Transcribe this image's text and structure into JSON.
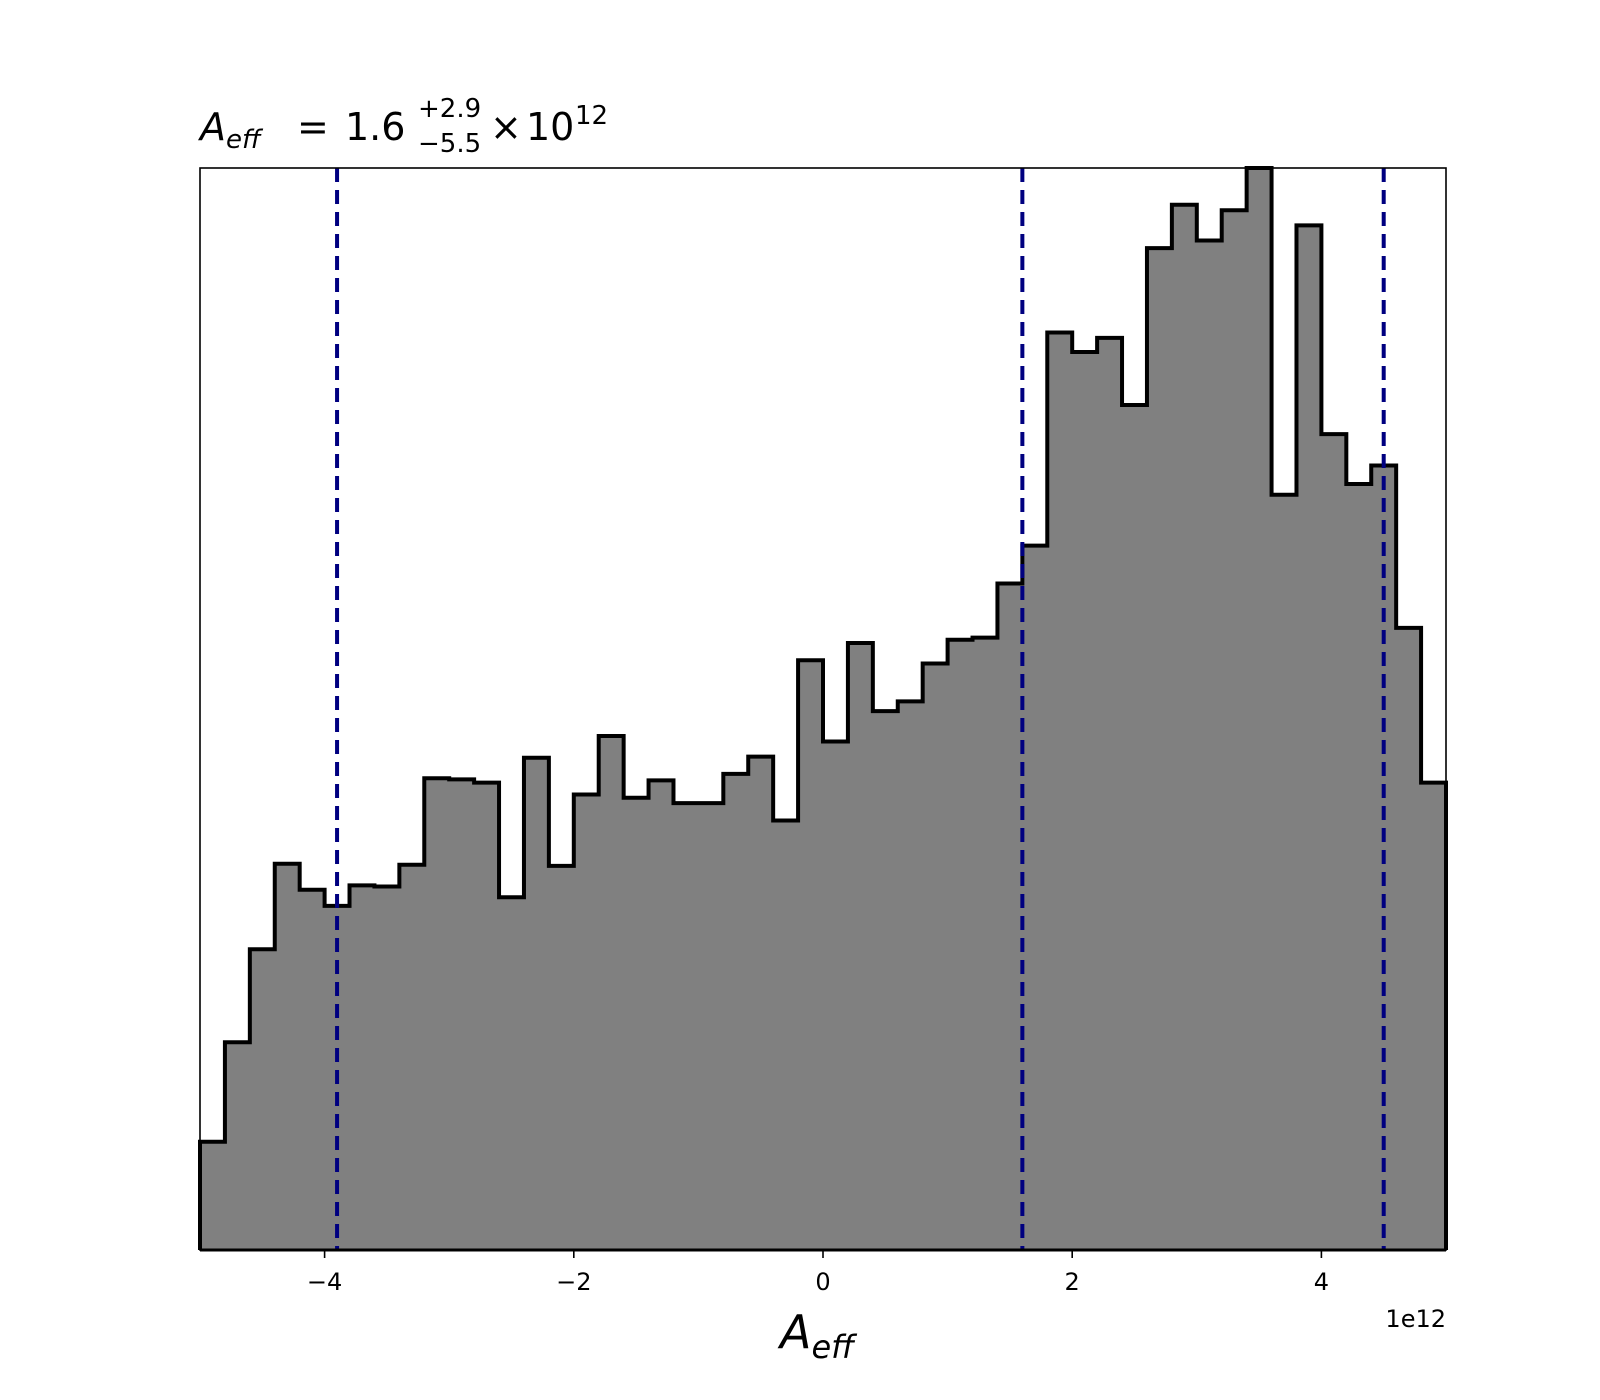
{
  "chart_data": {
    "type": "histogram",
    "title": {
      "symbol": "A",
      "symbol_subscript": "eff",
      "equals": "=",
      "median": "1.6",
      "upper": "+2.9",
      "lower": "−5.5",
      "times": "×",
      "base": "10",
      "exponent": "12"
    },
    "xlabel": {
      "symbol": "A",
      "subscript": "eff"
    },
    "x_offset_label": "1e12",
    "xlim": [
      -5,
      5
    ],
    "ylim": [
      0,
      1
    ],
    "x_ticks": [
      {
        "value": -4,
        "label": "−4"
      },
      {
        "value": -2,
        "label": "−2"
      },
      {
        "value": 0,
        "label": "0"
      },
      {
        "value": 2,
        "label": "2"
      },
      {
        "value": 4,
        "label": "4"
      }
    ],
    "yaxis_visible": false,
    "bin_edges_start": -5,
    "bin_width": 0.2,
    "counts": [
      0.1,
      0.192,
      0.278,
      0.357,
      0.333,
      0.318,
      0.337,
      0.336,
      0.356,
      0.436,
      0.435,
      0.432,
      0.326,
      0.455,
      0.355,
      0.421,
      0.475,
      0.418,
      0.434,
      0.413,
      0.413,
      0.44,
      0.456,
      0.397,
      0.545,
      0.47,
      0.561,
      0.498,
      0.507,
      0.542,
      0.564,
      0.566,
      0.616,
      0.651,
      0.848,
      0.83,
      0.843,
      0.781,
      0.926,
      0.966,
      0.933,
      0.961,
      1.0,
      0.698,
      0.947,
      0.754,
      0.708,
      0.725,
      0.575,
      0.432
    ],
    "quantile_lines": [
      -3.9,
      1.6,
      4.5
    ],
    "fill_color": "#808080",
    "edge_color": "#000000",
    "quantile_line_color": "#000080"
  }
}
